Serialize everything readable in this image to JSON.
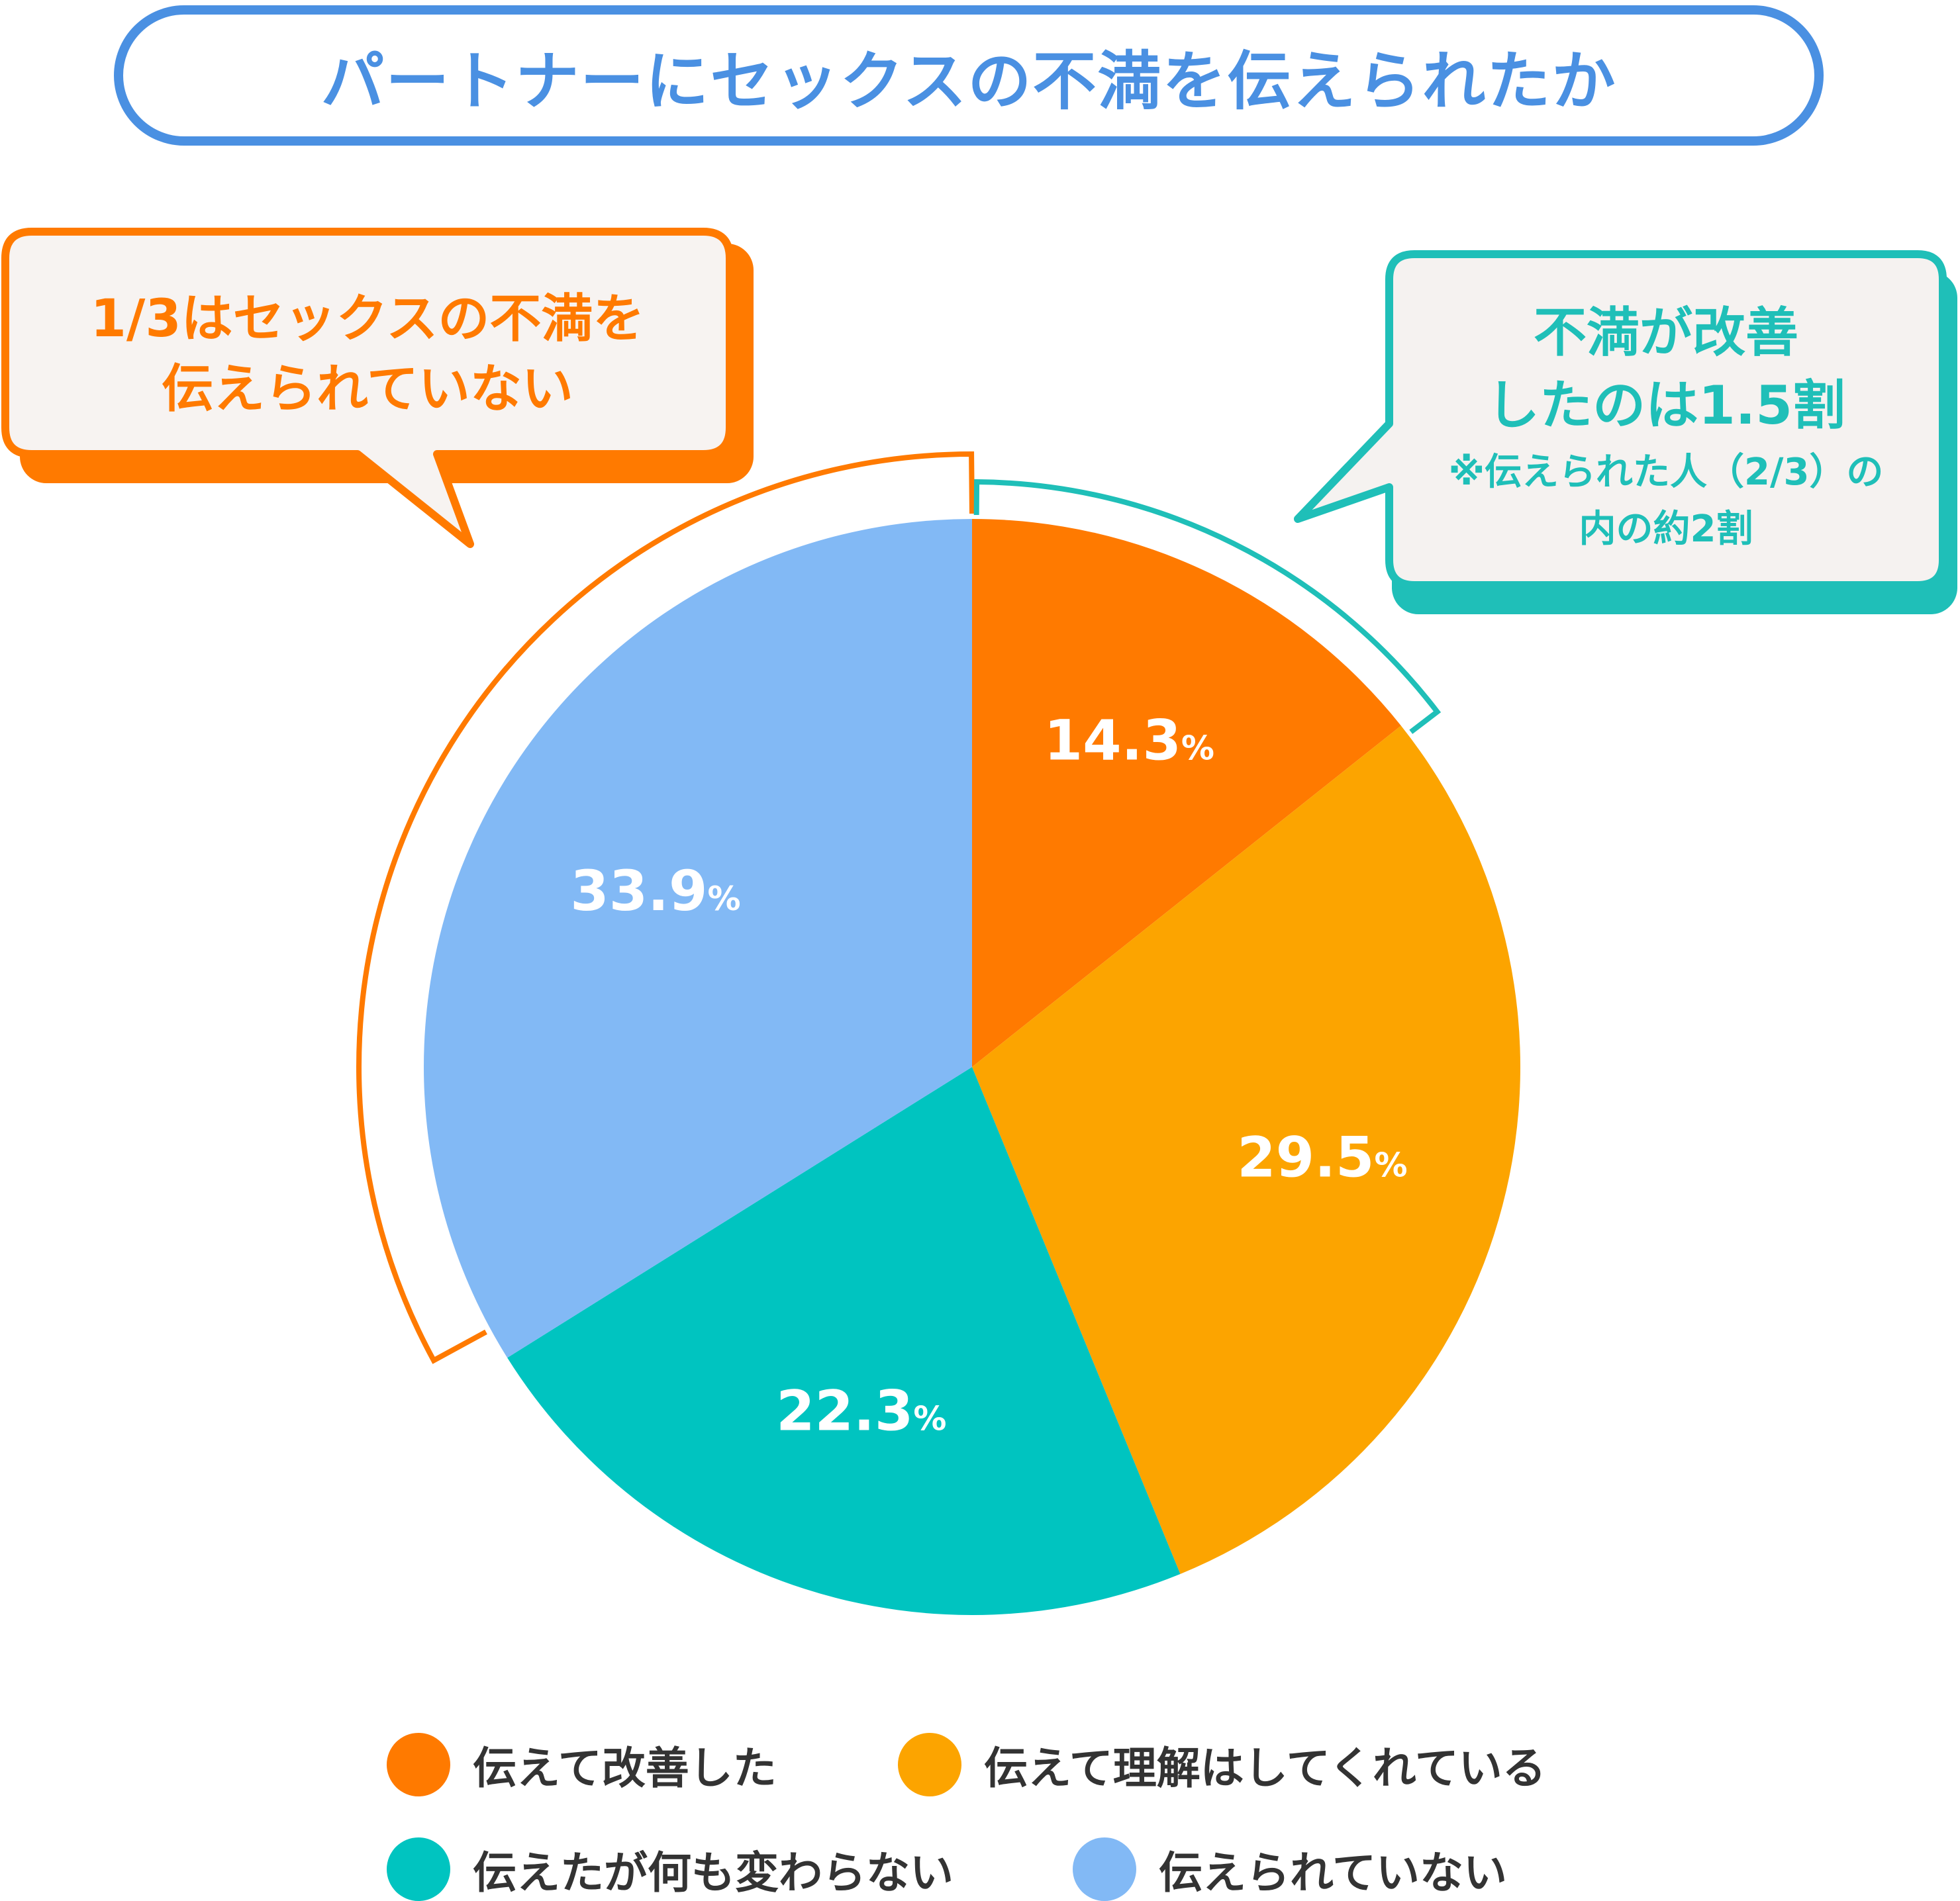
{
  "title": "パートナーにセックスの不満を伝えられたか",
  "callout_left": {
    "line1": "1/3はセックスの不満を",
    "line2": "伝えられていない",
    "color": "#ff7a00"
  },
  "callout_right": {
    "line1": "不満が改善",
    "line2": "したのは1.5割",
    "note1": "※伝えられた人（2/3）の",
    "note2": "内の約2割",
    "color": "#1fbfb8"
  },
  "chart_data": {
    "type": "pie",
    "title": "パートナーにセックスの不満を伝えられたか",
    "unit": "%",
    "start": "12 o'clock",
    "direction": "clockwise",
    "slices": [
      {
        "label": "伝えて改善した",
        "value": 14.3,
        "display": "14.3",
        "color": "#ff7a00"
      },
      {
        "label": "伝えて理解はしてくれている",
        "value": 29.5,
        "display": "29.5",
        "color": "#fca400"
      },
      {
        "label": "伝えたが何も変わらない",
        "value": 22.3,
        "display": "22.3",
        "color": "#00c4c0"
      },
      {
        "label": "伝えられていない",
        "value": 33.9,
        "display": "33.9",
        "color": "#82b9f5"
      }
    ],
    "legend_placement": "bottom"
  }
}
